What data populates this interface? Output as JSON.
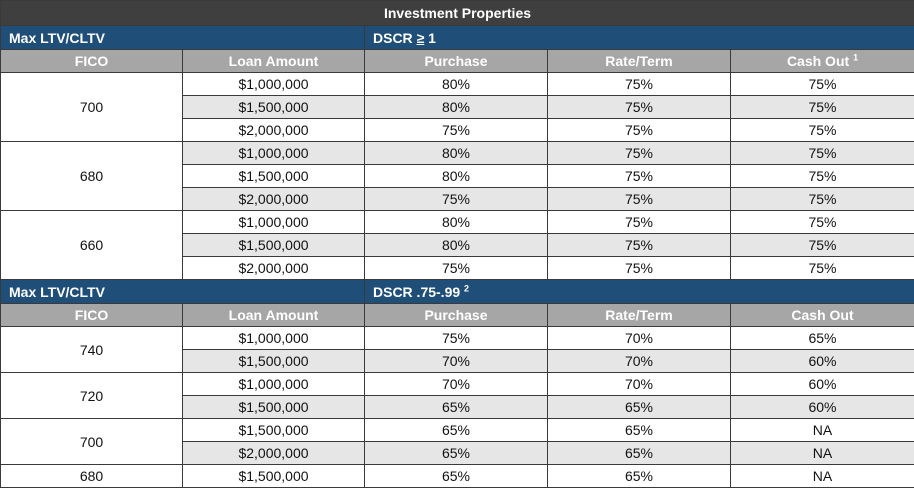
{
  "title": "Investment Properties",
  "section1": {
    "left_label": "Max LTV/CLTV",
    "dscr_prefix": "DSCR ",
    "dscr_ge": "≥",
    "dscr_value": " 1",
    "headers": {
      "fico": "FICO",
      "loan_amount": "Loan Amount",
      "purchase": "Purchase",
      "rate_term": "Rate/Term",
      "cash_out": "Cash Out",
      "cash_out_sup": "1"
    },
    "groups": [
      {
        "fico": "700",
        "rows": [
          {
            "loan": "$1,000,000",
            "purchase": "80%",
            "rate_term": "75%",
            "cash_out": "75%"
          },
          {
            "loan": "$1,500,000",
            "purchase": "80%",
            "rate_term": "75%",
            "cash_out": "75%"
          },
          {
            "loan": "$2,000,000",
            "purchase": "75%",
            "rate_term": "75%",
            "cash_out": "75%"
          }
        ]
      },
      {
        "fico": "680",
        "rows": [
          {
            "loan": "$1,000,000",
            "purchase": "80%",
            "rate_term": "75%",
            "cash_out": "75%"
          },
          {
            "loan": "$1,500,000",
            "purchase": "80%",
            "rate_term": "75%",
            "cash_out": "75%"
          },
          {
            "loan": "$2,000,000",
            "purchase": "75%",
            "rate_term": "75%",
            "cash_out": "75%"
          }
        ]
      },
      {
        "fico": "660",
        "rows": [
          {
            "loan": "$1,000,000",
            "purchase": "80%",
            "rate_term": "75%",
            "cash_out": "75%"
          },
          {
            "loan": "$1,500,000",
            "purchase": "80%",
            "rate_term": "75%",
            "cash_out": "75%"
          },
          {
            "loan": "$2,000,000",
            "purchase": "75%",
            "rate_term": "75%",
            "cash_out": "75%"
          }
        ]
      }
    ]
  },
  "section2": {
    "left_label": "Max LTV/CLTV",
    "dscr_label": "DSCR .75-.99",
    "dscr_sup": "2",
    "headers": {
      "fico": "FICO",
      "loan_amount": "Loan Amount",
      "purchase": "Purchase",
      "rate_term": "Rate/Term",
      "cash_out": "Cash Out"
    },
    "groups": [
      {
        "fico": "740",
        "rows": [
          {
            "loan": "$1,000,000",
            "purchase": "75%",
            "rate_term": "70%",
            "cash_out": "65%"
          },
          {
            "loan": "$1,500,000",
            "purchase": "70%",
            "rate_term": "70%",
            "cash_out": "60%"
          }
        ]
      },
      {
        "fico": "720",
        "rows": [
          {
            "loan": "$1,000,000",
            "purchase": "70%",
            "rate_term": "70%",
            "cash_out": "60%"
          },
          {
            "loan": "$1,500,000",
            "purchase": "65%",
            "rate_term": "65%",
            "cash_out": "60%"
          }
        ]
      },
      {
        "fico": "700",
        "rows": [
          {
            "loan": "$1,500,000",
            "purchase": "65%",
            "rate_term": "65%",
            "cash_out": "NA"
          },
          {
            "loan": "$2,000,000",
            "purchase": "65%",
            "rate_term": "65%",
            "cash_out": "NA"
          }
        ]
      },
      {
        "fico": "680",
        "rows": [
          {
            "loan": "$1,500,000",
            "purchase": "65%",
            "rate_term": "65%",
            "cash_out": "NA"
          }
        ]
      }
    ]
  }
}
